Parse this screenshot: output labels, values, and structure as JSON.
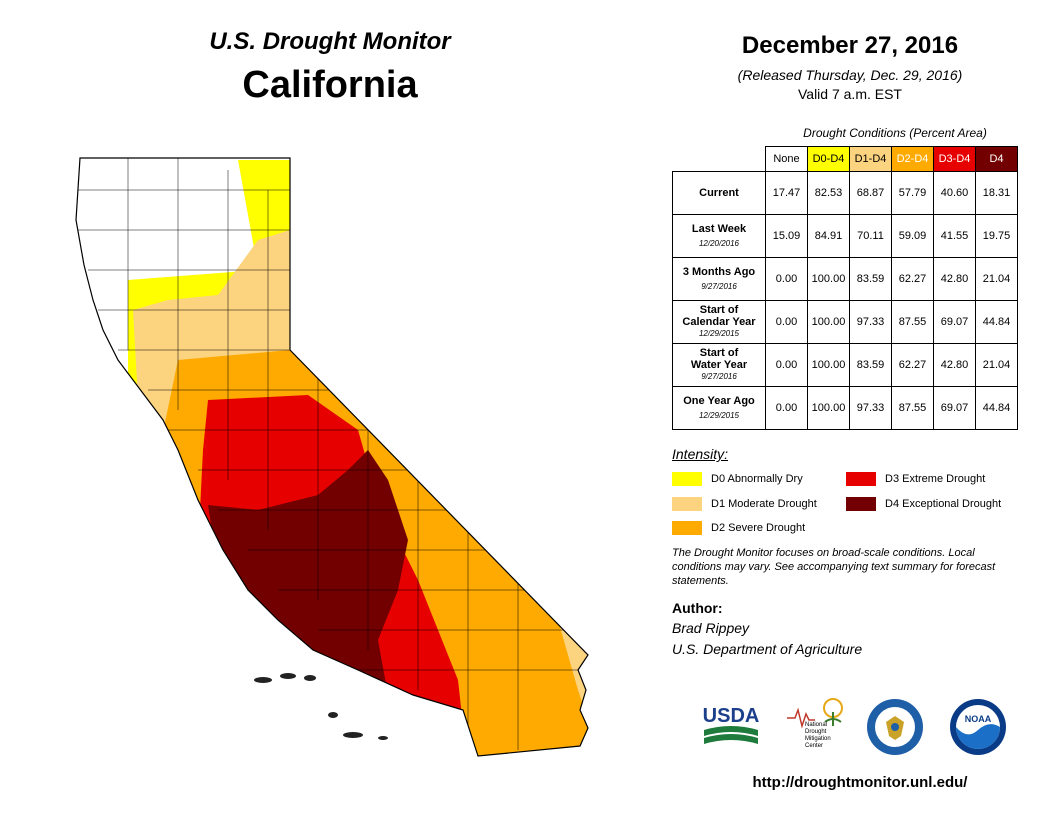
{
  "header": {
    "monitor_title": "U.S. Drought Monitor",
    "state": "California",
    "date": "December 27, 2016",
    "released": "(Released Thursday, Dec. 29, 2016)",
    "valid": "Valid 7 a.m. EST"
  },
  "conditions_table": {
    "caption": "Drought Conditions (Percent Area)",
    "columns": [
      {
        "label": "None",
        "color": "#ffffff",
        "text_color": "#000000"
      },
      {
        "label": "D0-D4",
        "color": "#ffff00",
        "text_color": "#000000"
      },
      {
        "label": "D1-D4",
        "color": "#fcd37f",
        "text_color": "#000000"
      },
      {
        "label": "D2-D4",
        "color": "#ffaa00",
        "text_color": "#ffffff"
      },
      {
        "label": "D3-D4",
        "color": "#e60000",
        "text_color": "#ffffff"
      },
      {
        "label": "D4",
        "color": "#730000",
        "text_color": "#ffffff"
      }
    ],
    "rows": [
      {
        "label": "Current",
        "label2": "",
        "date": "",
        "values": [
          "17.47",
          "82.53",
          "68.87",
          "57.79",
          "40.60",
          "18.31"
        ]
      },
      {
        "label": "Last Week",
        "label2": "",
        "date": "12/20/2016",
        "values": [
          "15.09",
          "84.91",
          "70.11",
          "59.09",
          "41.55",
          "19.75"
        ]
      },
      {
        "label": "3 Months Ago",
        "label2": "",
        "date": "9/27/2016",
        "values": [
          "0.00",
          "100.00",
          "83.59",
          "62.27",
          "42.80",
          "21.04"
        ]
      },
      {
        "label": "Start of",
        "label2": "Calendar Year",
        "date": "12/29/2015",
        "values": [
          "0.00",
          "100.00",
          "97.33",
          "87.55",
          "69.07",
          "44.84"
        ]
      },
      {
        "label": "Start of",
        "label2": "Water Year",
        "date": "9/27/2016",
        "values": [
          "0.00",
          "100.00",
          "83.59",
          "62.27",
          "42.80",
          "21.04"
        ]
      },
      {
        "label": "One Year Ago",
        "label2": "",
        "date": "12/29/2015",
        "values": [
          "0.00",
          "100.00",
          "97.33",
          "87.55",
          "69.07",
          "44.84"
        ]
      }
    ]
  },
  "legend": {
    "title": "Intensity:",
    "items": [
      {
        "label": "D0 Abnormally Dry",
        "color": "#ffff00"
      },
      {
        "label": "D1 Moderate Drought",
        "color": "#fcd37f"
      },
      {
        "label": "D2 Severe Drought",
        "color": "#ffaa00"
      },
      {
        "label": "D3 Extreme Drought",
        "color": "#e60000"
      },
      {
        "label": "D4 Exceptional Drought",
        "color": "#730000"
      }
    ]
  },
  "note": "The Drought Monitor focuses on broad-scale conditions. Local conditions may vary. See accompanying text summary for forecast statements.",
  "author": {
    "heading": "Author:",
    "name": "Brad Rippey",
    "org": "U.S. Department of Agriculture"
  },
  "logos": {
    "usda": "USDA",
    "ndmc_lines": [
      "National",
      "Drought",
      "Mitigation",
      "Center"
    ],
    "noaa": "NOAA"
  },
  "url": "http://droughtmonitor.unl.edu/"
}
